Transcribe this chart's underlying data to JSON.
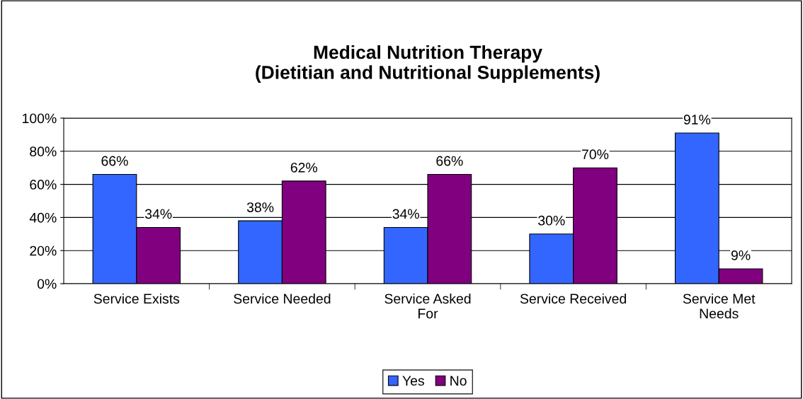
{
  "chart_data": {
    "type": "bar",
    "title": "Medical Nutrition Therapy\n(Dietitian and Nutritional Supplements)",
    "categories": [
      "Service Exists",
      "Service Needed",
      "Service Asked\nFor",
      "Service Received",
      "Service Met\nNeeds"
    ],
    "series": [
      {
        "name": "Yes",
        "color": "#3366ff",
        "values": [
          66,
          38,
          34,
          30,
          91
        ],
        "value_labels": [
          "66%",
          "38%",
          "34%",
          "30%",
          "91%"
        ]
      },
      {
        "name": "No",
        "color": "#800080",
        "values": [
          34,
          62,
          66,
          70,
          9
        ],
        "value_labels": [
          "34%",
          "62%",
          "66%",
          "70%",
          "9%"
        ]
      }
    ],
    "ylim": [
      0,
      100
    ],
    "yticks": [
      {
        "value": 0,
        "label": "0%"
      },
      {
        "value": 20,
        "label": "20%"
      },
      {
        "value": 40,
        "label": "40%"
      },
      {
        "value": 60,
        "label": "60%"
      },
      {
        "value": 80,
        "label": "80%"
      },
      {
        "value": 100,
        "label": "100%"
      }
    ],
    "grid": "y",
    "legend": "bottom"
  }
}
